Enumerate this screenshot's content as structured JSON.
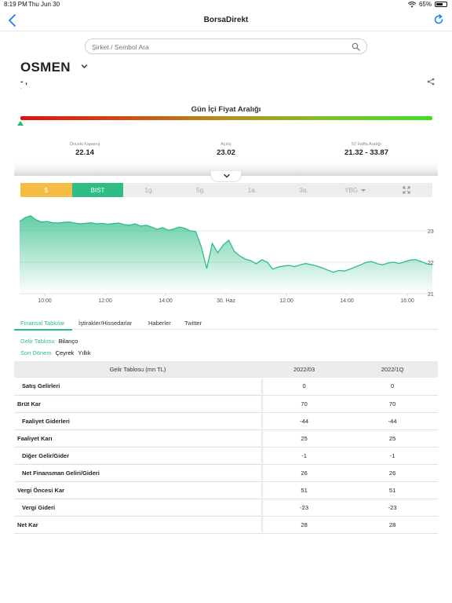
{
  "status_bar": {
    "time": "8:19 PM",
    "date": "Thu Jun 30",
    "battery": "65%"
  },
  "nav": {
    "title": "BorsaDirekt",
    "back_icon": "chevron-left-icon",
    "refresh_icon": "refresh-icon"
  },
  "search": {
    "placeholder": "Şirket / Sembol Ara"
  },
  "stock": {
    "symbol": "OSMEN",
    "name_line": "- ,",
    "sub_line": "-"
  },
  "price_range": {
    "title": "Gün İçi Fiyat Aralığı",
    "position_fraction": 0.0,
    "stats": [
      {
        "label": "Önceki Kapanış",
        "value": "22.14"
      },
      {
        "label": "Açılış",
        "value": "23.02"
      },
      {
        "label": "52 Hafta Aralığı",
        "value": "21.32 - 33.87"
      }
    ]
  },
  "segments": [
    {
      "label": "$",
      "state": "selected-currency"
    },
    {
      "label": "BIST",
      "state": "selected-market"
    },
    {
      "label": "1g."
    },
    {
      "label": "5g."
    },
    {
      "label": "1a."
    },
    {
      "label": "3a."
    },
    {
      "label": "YBG"
    }
  ],
  "chart_data": {
    "type": "area",
    "x_tick_labels": [
      "10:00",
      "12:00",
      "14:00",
      "30. Haz",
      "12:00",
      "14:00",
      "16:00"
    ],
    "y_tick_labels": [
      "23",
      "22",
      "21"
    ],
    "ylim": [
      21,
      23.6
    ],
    "grid": true,
    "color": "#2ebd85",
    "values": [
      23.3,
      23.42,
      23.48,
      23.35,
      23.28,
      23.3,
      23.26,
      23.25,
      23.27,
      23.28,
      23.25,
      23.22,
      23.24,
      23.26,
      23.22,
      23.24,
      23.21,
      23.23,
      23.25,
      23.2,
      23.18,
      23.22,
      23.15,
      23.18,
      23.12,
      23.05,
      23.1,
      23.02,
      23.06,
      23.12,
      23.08,
      23.0,
      22.98,
      22.5,
      21.8,
      22.6,
      22.3,
      22.55,
      22.7,
      22.35,
      22.2,
      22.1,
      22.05,
      21.95,
      22.08,
      22.0,
      21.78,
      21.85,
      21.88,
      21.9,
      21.86,
      21.92,
      21.96,
      21.92,
      21.88,
      21.82,
      21.75,
      21.68,
      21.74,
      21.72,
      21.78,
      21.85,
      21.92,
      22.0,
      22.02,
      21.95,
      21.92,
      21.98,
      22.0,
      21.96,
      22.02,
      22.07,
      22.08,
      22.02,
      21.95,
      21.92
    ]
  },
  "info_tabs": [
    "Finansal Tablolar",
    "İştirakler/Hissedarlar",
    "Haberler",
    "Twitter"
  ],
  "statement_tabs": [
    "Gelir Tablosu",
    "Bilanço"
  ],
  "period_tabs": [
    "Son Dönem",
    "Çeyrek",
    "Yıllık"
  ],
  "table": {
    "headers": [
      "Gelir Tablosu (mn TL)",
      "2022/03",
      "2022/1Q"
    ],
    "rows": [
      {
        "label": "Satış Gelirleri",
        "indent": true,
        "v1": "0",
        "v2": "0"
      },
      {
        "label": "Brüt Kar",
        "indent": false,
        "v1": "70",
        "v2": "70"
      },
      {
        "label": "Faaliyet Giderleri",
        "indent": true,
        "v1": "-44",
        "v2": "-44"
      },
      {
        "label": "Faaliyet Karı",
        "indent": false,
        "v1": "25",
        "v2": "25"
      },
      {
        "label": "Diğer Gelir/Gider",
        "indent": true,
        "v1": "-1",
        "v2": "-1"
      },
      {
        "label": "Net Finansman Geliri/Gideri",
        "indent": true,
        "v1": "26",
        "v2": "26"
      },
      {
        "label": "Vergi Öncesi Kar",
        "indent": false,
        "v1": "51",
        "v2": "51"
      },
      {
        "label": "Vergi Gideri",
        "indent": true,
        "v1": "-23",
        "v2": "-23"
      },
      {
        "label": "Net Kar",
        "indent": false,
        "v1": "28",
        "v2": "28"
      }
    ]
  }
}
